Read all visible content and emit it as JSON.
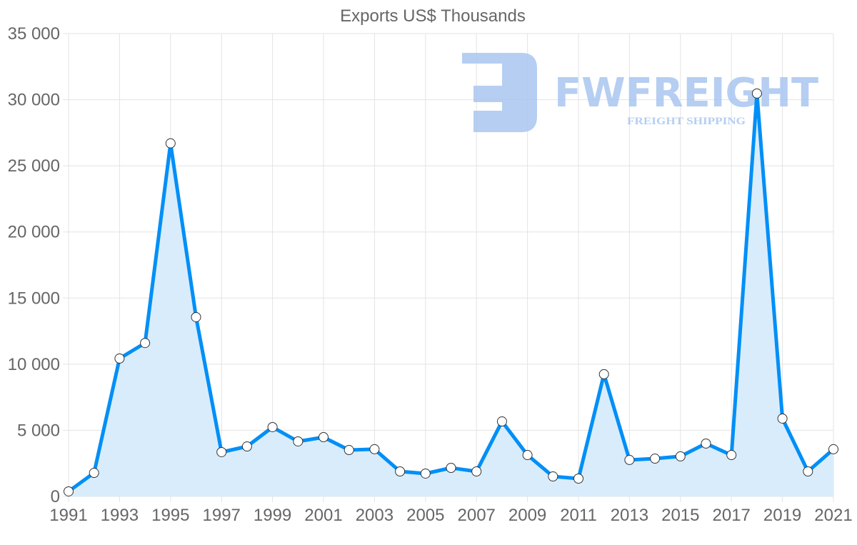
{
  "chart_data": {
    "type": "area",
    "title": "Exports US$ Thousands",
    "xlabel": "",
    "ylabel": "",
    "ylim": [
      0,
      35000
    ],
    "xlim": [
      1991,
      2021
    ],
    "grid": true,
    "legend": "none",
    "y_ticks": [
      0,
      5000,
      10000,
      15000,
      20000,
      25000,
      30000,
      35000
    ],
    "y_tick_labels": [
      "0",
      "5 000",
      "10 000",
      "15 000",
      "20 000",
      "25 000",
      "30 000",
      "35 000"
    ],
    "x_tick_labels": [
      "1991",
      "1993",
      "1995",
      "1997",
      "1999",
      "2001",
      "2003",
      "2005",
      "2007",
      "2009",
      "2011",
      "2013",
      "2015",
      "2017",
      "2019",
      "2021"
    ],
    "series": [
      {
        "name": "Exports US$ Thousands",
        "color": "#008ff7",
        "fill": "#d9ecfc",
        "x": [
          1991,
          1992,
          1993,
          1994,
          1995,
          1996,
          1997,
          1998,
          1999,
          2000,
          2001,
          2002,
          2003,
          2004,
          2005,
          2006,
          2007,
          2008,
          2009,
          2010,
          2011,
          2012,
          2013,
          2014,
          2015,
          2016,
          2017,
          2018,
          2019,
          2020,
          2021
        ],
        "values": [
          380,
          1780,
          10430,
          11600,
          26700,
          13560,
          3350,
          3780,
          5240,
          4160,
          4480,
          3510,
          3570,
          1890,
          1730,
          2160,
          1890,
          5670,
          3130,
          1510,
          1350,
          9240,
          2760,
          2860,
          3030,
          4000,
          3130,
          30470,
          5890,
          1890,
          3570
        ]
      }
    ]
  },
  "watermark": {
    "brand": "FWFREIGHT",
    "tagline": "FREIGHT SHIPPING",
    "color": "#a9c6f0"
  }
}
